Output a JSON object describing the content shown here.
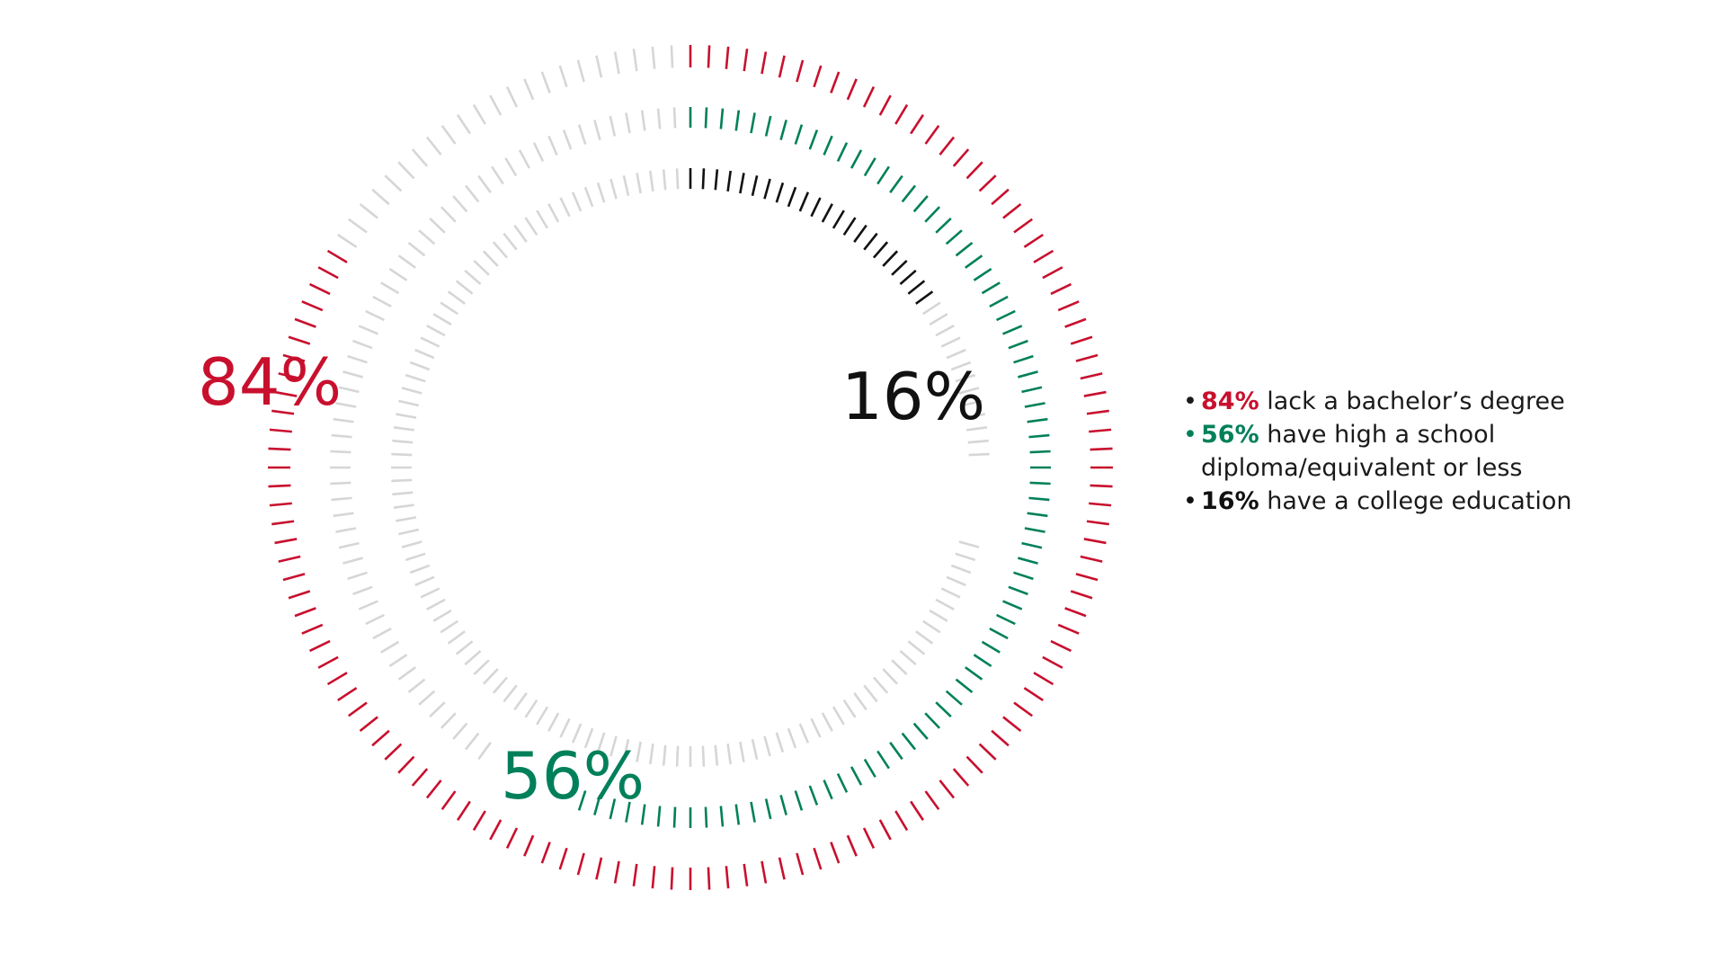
{
  "colors": {
    "background": "#ffffff",
    "inactive": "#d6d6d6"
  },
  "chart_data": {
    "type": "radial-tick-donut",
    "title": "",
    "grid": false,
    "legend_placement": "right",
    "total": 100,
    "series": [
      {
        "label": "84%",
        "value": 84,
        "color": "#c8102e"
      },
      {
        "label": "56%",
        "value": 56,
        "color": "#00805a"
      },
      {
        "label": "16%",
        "value": 16,
        "color": "#111111"
      }
    ]
  },
  "legend": {
    "items": [
      {
        "bullet": "•",
        "value": "84%",
        "text": "lack a bachelor’s degree",
        "color": "#c8102e"
      },
      {
        "bullet": "•",
        "value": "56%",
        "text": "have high a school diploma/equivalent or less",
        "color": "#00805a"
      },
      {
        "bullet": "•",
        "value": "16%",
        "text": "have a college education",
        "color": "#111111"
      }
    ]
  }
}
